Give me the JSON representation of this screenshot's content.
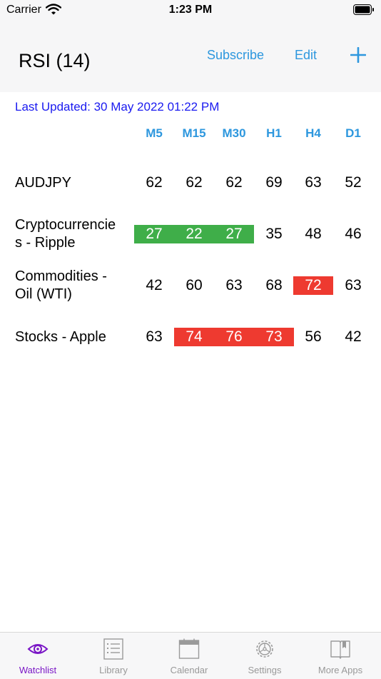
{
  "status_bar": {
    "carrier": "Carrier",
    "time": "1:23 PM"
  },
  "nav": {
    "title": "RSI (14)",
    "subscribe_label": "Subscribe",
    "edit_label": "Edit",
    "add_icon": "plus-icon"
  },
  "last_updated": "Last Updated: 30 May 2022 01:22 PM",
  "columns": [
    "M5",
    "M15",
    "M30",
    "H1",
    "H4",
    "D1"
  ],
  "rows": [
    {
      "label": "AUDJPY",
      "values": [
        "62",
        "62",
        "62",
        "69",
        "63",
        "52"
      ],
      "highlights": [
        "",
        "",
        "",
        "",
        "",
        ""
      ]
    },
    {
      "label": "Cryptocurrencie\ns - Ripple",
      "values": [
        "27",
        "22",
        "27",
        "35",
        "48",
        "46"
      ],
      "highlights": [
        "green",
        "green",
        "green",
        "",
        "",
        ""
      ]
    },
    {
      "label": "Commodities -\nOil (WTI)",
      "values": [
        "42",
        "60",
        "63",
        "68",
        "72",
        "63"
      ],
      "highlights": [
        "",
        "",
        "",
        "",
        "red",
        ""
      ]
    },
    {
      "label": "Stocks - Apple",
      "values": [
        "63",
        "74",
        "76",
        "73",
        "56",
        "42"
      ],
      "highlights": [
        "",
        "red",
        "red",
        "red",
        "",
        ""
      ]
    }
  ],
  "colors": {
    "accent": "#2d97de",
    "overbought": "#ee3a30",
    "oversold": "#3fae49",
    "active_tab": "#7a16c6"
  },
  "tabs": [
    {
      "label": "Watchlist",
      "icon": "eye-icon",
      "active": true
    },
    {
      "label": "Library",
      "icon": "list-icon",
      "active": false
    },
    {
      "label": "Calendar",
      "icon": "calendar-icon",
      "active": false
    },
    {
      "label": "Settings",
      "icon": "gear-icon",
      "active": false
    },
    {
      "label": "More Apps",
      "icon": "book-icon",
      "active": false
    }
  ]
}
